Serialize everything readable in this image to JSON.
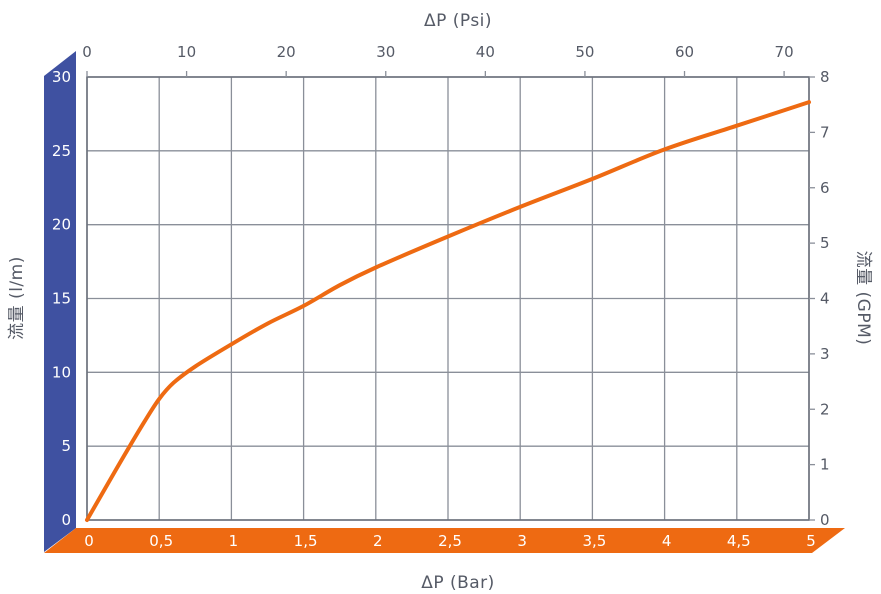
{
  "chart_data": {
    "type": "line",
    "colors": {
      "series": "#ee6a12",
      "left_band": "#3f51a1",
      "bottom_band": "#ee6a12",
      "grid": "#8a8f99",
      "text": "#555a66"
    },
    "axes": {
      "top": {
        "label": "ΔP (Psi)",
        "range": [
          0,
          72.5
        ],
        "ticks": [
          {
            "value": 0,
            "label": "0"
          },
          {
            "value": 10,
            "label": "10"
          },
          {
            "value": 20,
            "label": "20"
          },
          {
            "value": 30,
            "label": "30"
          },
          {
            "value": 40,
            "label": "40"
          },
          {
            "value": 50,
            "label": "50"
          },
          {
            "value": 60,
            "label": "60"
          },
          {
            "value": 70,
            "label": "70"
          }
        ]
      },
      "bottom": {
        "label": "ΔP (Bar)",
        "range": [
          0,
          5
        ],
        "ticks": [
          {
            "value": 0,
            "label": "0"
          },
          {
            "value": 0.5,
            "label": "0,5"
          },
          {
            "value": 1,
            "label": "1"
          },
          {
            "value": 1.5,
            "label": "1,5"
          },
          {
            "value": 2,
            "label": "2"
          },
          {
            "value": 2.5,
            "label": "2,5"
          },
          {
            "value": 3,
            "label": "3"
          },
          {
            "value": 3.5,
            "label": "3,5"
          },
          {
            "value": 4,
            "label": "4"
          },
          {
            "value": 4.5,
            "label": "4,5"
          },
          {
            "value": 5,
            "label": "5"
          }
        ]
      },
      "left": {
        "label": "流量 (l/m)",
        "range": [
          0,
          30
        ],
        "ticks": [
          {
            "value": 0,
            "label": "0"
          },
          {
            "value": 5,
            "label": "5"
          },
          {
            "value": 10,
            "label": "10"
          },
          {
            "value": 15,
            "label": "15"
          },
          {
            "value": 20,
            "label": "20"
          },
          {
            "value": 25,
            "label": "25"
          },
          {
            "value": 30,
            "label": "30"
          }
        ]
      },
      "right": {
        "label": "流量 (GPM)",
        "range": [
          0,
          8
        ],
        "ticks": [
          {
            "value": 0,
            "label": "0"
          },
          {
            "value": 1,
            "label": "1"
          },
          {
            "value": 2,
            "label": "2"
          },
          {
            "value": 3,
            "label": "3"
          },
          {
            "value": 4,
            "label": "4"
          },
          {
            "value": 5,
            "label": "5"
          },
          {
            "value": 6,
            "label": "6"
          },
          {
            "value": 7,
            "label": "7"
          },
          {
            "value": 8,
            "label": "8"
          }
        ]
      }
    },
    "grid": true,
    "series": [
      {
        "x_unit": "Bar",
        "y_unit": "l/m",
        "points": [
          [
            0,
            0
          ],
          [
            0.2,
            3.4
          ],
          [
            0.4,
            6.7
          ],
          [
            0.5,
            8.2
          ],
          [
            0.6,
            9.3
          ],
          [
            0.75,
            10.4
          ],
          [
            1.0,
            11.9
          ],
          [
            1.25,
            13.3
          ],
          [
            1.5,
            14.5
          ],
          [
            1.75,
            15.9
          ],
          [
            2.0,
            17.1
          ],
          [
            2.5,
            19.2
          ],
          [
            3.0,
            21.2
          ],
          [
            3.5,
            23.1
          ],
          [
            4.0,
            25.1
          ],
          [
            4.5,
            26.7
          ],
          [
            5.0,
            28.3
          ]
        ]
      }
    ]
  }
}
